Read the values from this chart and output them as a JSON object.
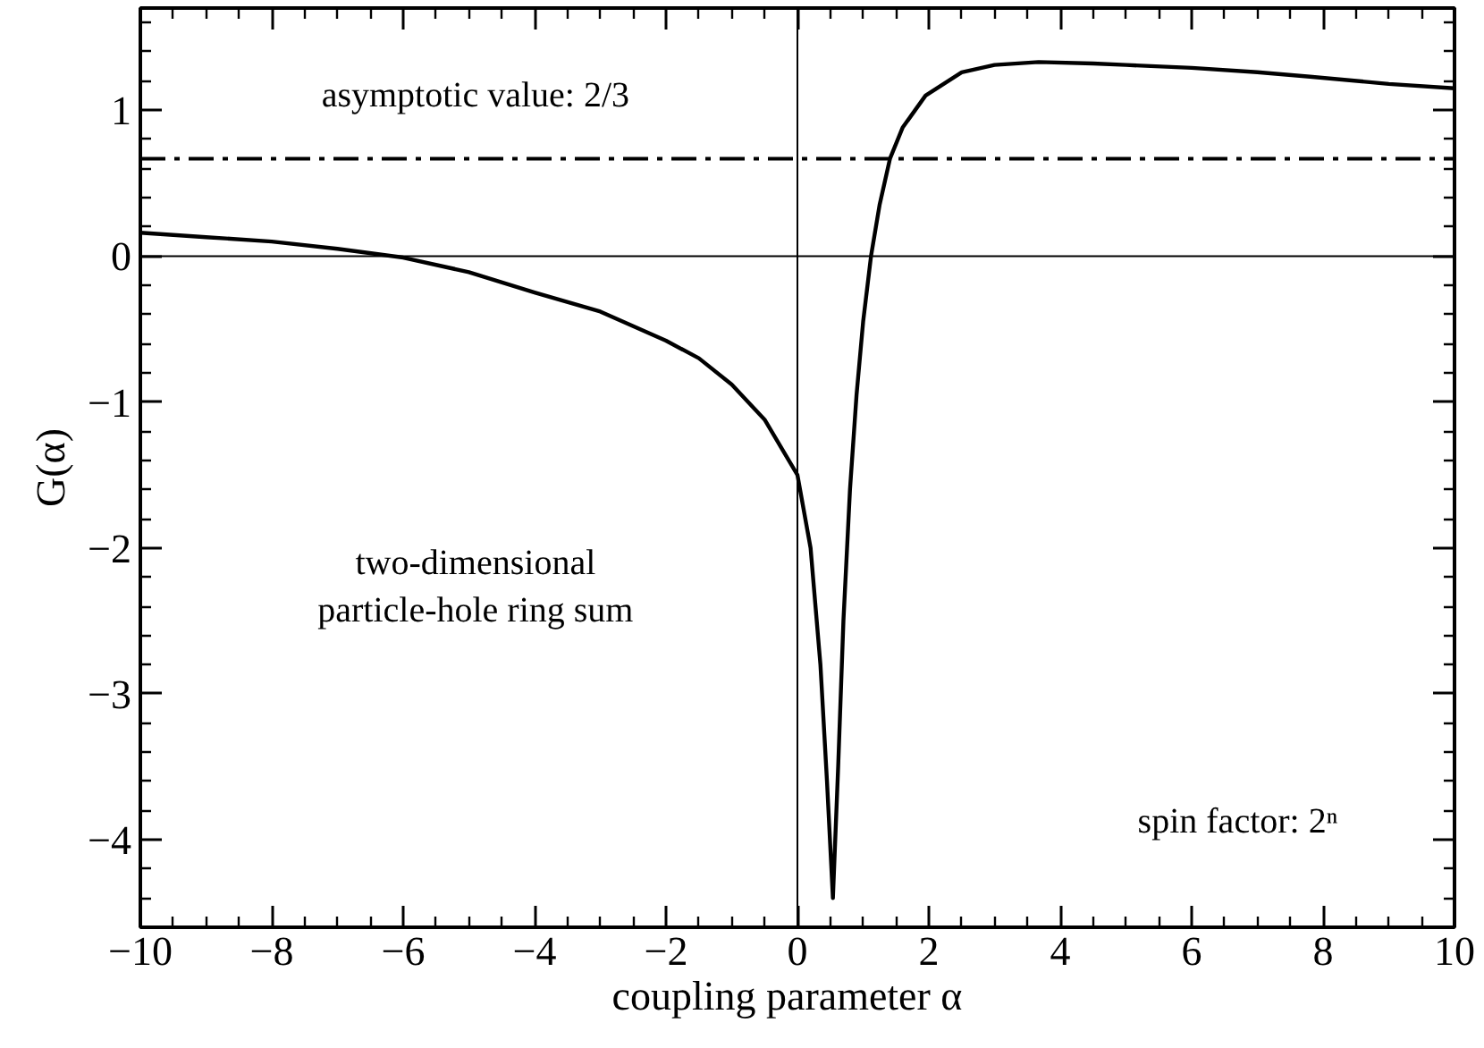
{
  "chart_data": {
    "type": "line",
    "xlabel": "coupling parameter   α",
    "ylabel": "G(α)",
    "x": [
      -10,
      -9,
      -8,
      -7,
      -6,
      -5,
      -4,
      -3,
      -2,
      -1.5,
      -1,
      -0.5,
      0,
      0.2,
      0.35,
      0.45,
      0.54,
      0.62,
      0.7,
      0.8,
      0.9,
      1.0,
      1.12,
      1.25,
      1.41,
      1.6,
      1.95,
      2.5,
      3,
      3.67,
      4.5,
      5,
      6,
      7,
      7.8,
      9,
      10
    ],
    "series": [
      {
        "color": "#000000",
        "values": [
          0.16,
          0.13,
          0.1,
          0.05,
          -0.01,
          -0.11,
          -0.25,
          -0.38,
          -0.58,
          -0.7,
          -0.88,
          -1.12,
          -1.5,
          -2.0,
          -2.8,
          -3.6,
          -4.4,
          -3.5,
          -2.5,
          -1.6,
          -0.95,
          -0.45,
          0,
          0.35,
          0.67,
          0.88,
          1.1,
          1.26,
          1.31,
          1.33,
          1.32,
          1.31,
          1.29,
          1.26,
          1.23,
          1.18,
          1.15
        ]
      }
    ],
    "xlim": [
      -10,
      10
    ],
    "ylim": [
      -4.6,
      1.7
    ],
    "xticks": [
      -10,
      -8,
      -6,
      -4,
      -2,
      0,
      2,
      4,
      6,
      8,
      10
    ],
    "yticks": [
      -4,
      -3,
      -2,
      -1,
      0,
      1
    ],
    "ref_lines": [
      {
        "axis": "y",
        "value": 0,
        "color": "#000000",
        "line_style": "solid"
      },
      {
        "axis": "x",
        "value": 0,
        "color": "#000000",
        "line_style": "solid"
      },
      {
        "axis": "y",
        "value": 0.667,
        "color": "#000000",
        "line_style": "dashdot"
      }
    ],
    "annotations": [
      "asymptotic value: 2/3",
      "two-dimensional\nparticle-hole ring sum",
      "spin factor: 2ⁿ"
    ],
    "grid": false,
    "marker": "none",
    "line_style": "solid"
  }
}
